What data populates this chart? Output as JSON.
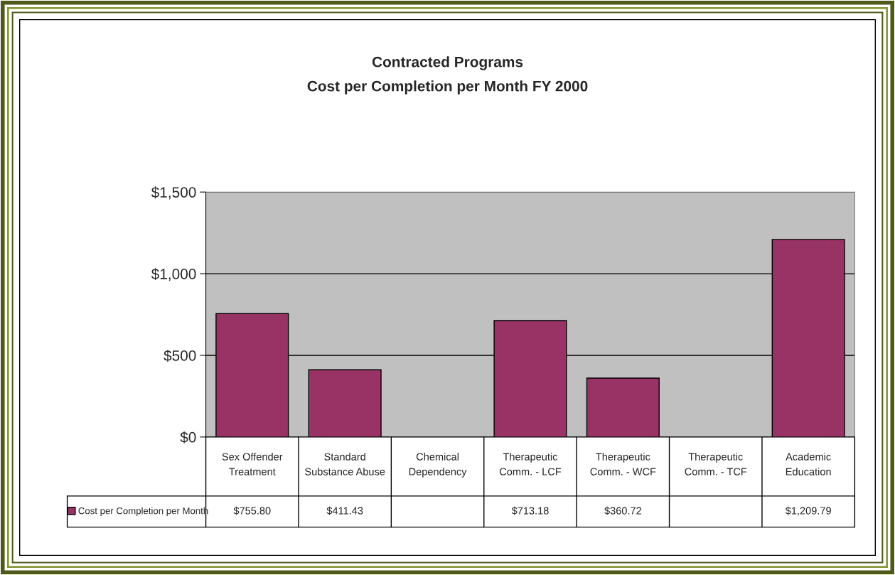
{
  "chart_data": {
    "type": "bar",
    "title": "Contracted Programs",
    "subtitle": "Cost per Completion per Month FY 2000",
    "categories": [
      "Sex Offender\nTreatment",
      "Standard\nSubstance Abuse",
      "Chemical\nDependency",
      "Therapeutic\nComm. - LCF",
      "Therapeutic\nComm. - WCF",
      "Therapeutic\nComm. - TCF",
      "Academic\nEducation"
    ],
    "series": [
      {
        "name": "Cost per Completion per Month",
        "color": "#993366",
        "values": [
          755.8,
          411.43,
          null,
          713.18,
          360.72,
          null,
          1209.79
        ],
        "value_labels": [
          "$755.80",
          "$411.43",
          null,
          "$713.18",
          "$360.72",
          null,
          "$1,209.79"
        ]
      }
    ],
    "ylim": [
      0,
      1500
    ],
    "yticks": [
      {
        "value": 0,
        "label": "$0"
      },
      {
        "value": 500,
        "label": "$500"
      },
      {
        "value": 1000,
        "label": "$1,000"
      },
      {
        "value": 1500,
        "label": "$1,500"
      }
    ],
    "grid": "y",
    "legend": "bottom left"
  }
}
